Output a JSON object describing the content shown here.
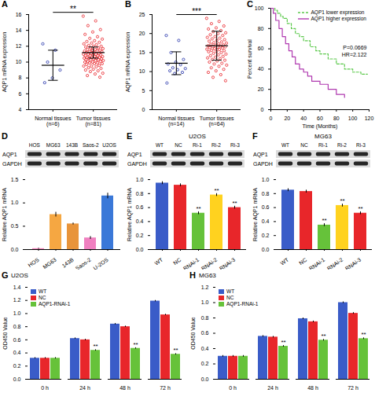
{
  "chart_data": [
    {
      "panel": "A",
      "type": "scatter",
      "categories": [
        "Normal tissues\n(n=6)",
        "Tumor tissues\n(n=81)"
      ],
      "points": [
        [
          12.3,
          11.5,
          10.0,
          9.0,
          8.0,
          7.4
        ],
        [
          15.8,
          15.2,
          14.6,
          14.1,
          13.8,
          13.5,
          13.2,
          13.0,
          12.9,
          12.7,
          12.6,
          12.5,
          12.4,
          12.3,
          12.2,
          12.1,
          12.0,
          12.0,
          11.9,
          11.8,
          11.8,
          11.7,
          11.6,
          11.6,
          11.5,
          11.5,
          11.4,
          11.4,
          11.3,
          11.3,
          11.2,
          11.2,
          11.1,
          11.1,
          11.0,
          11.0,
          11.0,
          10.9,
          10.9,
          10.8,
          10.8,
          10.8,
          10.7,
          10.7,
          10.6,
          10.6,
          10.6,
          10.5,
          10.5,
          10.5,
          10.4,
          10.4,
          10.3,
          10.3,
          10.3,
          10.2,
          10.2,
          10.1,
          10.1,
          10.0,
          10.0,
          9.9,
          9.9,
          9.8,
          9.8,
          9.7,
          9.6,
          9.5,
          9.5,
          9.4,
          9.3,
          9.2,
          9.1,
          9.0,
          8.9,
          8.8,
          8.6,
          8.5,
          8.3,
          8.1,
          11.5
        ]
      ],
      "means": [
        9.6,
        11.2
      ],
      "errors": [
        1.9,
        0.7
      ],
      "colors": [
        "#1f2fa8",
        "#e8232a"
      ],
      "ylabel": "AQP1 mRNA expression",
      "ylim": [
        4,
        16
      ],
      "yticks": [
        4,
        6,
        8,
        10,
        12,
        14,
        16
      ],
      "annotations": [
        "**"
      ]
    },
    {
      "panel": "B",
      "type": "scatter",
      "categories": [
        "Normal tissues\n(n=14)",
        "Tumor tissues\n(n=64)"
      ],
      "points": [
        [
          19.5,
          18.2,
          15.0,
          13.2,
          12.5,
          12.0,
          11.8,
          11.0,
          10.8,
          10.5,
          10.2,
          9.8,
          9.5,
          7.0
        ],
        [
          24.0,
          23.2,
          22.6,
          22.0,
          21.5,
          21.2,
          20.8,
          20.5,
          20.2,
          20.0,
          19.7,
          19.5,
          19.2,
          19.0,
          18.8,
          18.6,
          18.4,
          18.2,
          18.0,
          17.8,
          17.6,
          17.5,
          17.3,
          17.2,
          17.0,
          16.9,
          16.8,
          16.7,
          16.6,
          16.5,
          16.4,
          16.3,
          16.2,
          16.0,
          15.9,
          15.8,
          15.6,
          15.5,
          15.3,
          15.2,
          15.0,
          14.8,
          14.6,
          14.4,
          14.2,
          14.0,
          13.8,
          13.6,
          13.4,
          13.2,
          13.0,
          12.8,
          12.5,
          12.2,
          12.0,
          11.7,
          11.4,
          11.0,
          10.6,
          10.2,
          9.8,
          9.2,
          8.5,
          7.6
        ]
      ],
      "means": [
        12.2,
        16.8
      ],
      "errors": [
        3.0,
        3.8
      ],
      "colors": [
        "#1f2fa8",
        "#e8232a"
      ],
      "ylabel": "AQP1 mRNA expression",
      "ylim": [
        0,
        25
      ],
      "yticks": [
        0,
        5,
        10,
        15,
        20,
        25
      ],
      "annotations": [
        "***"
      ]
    },
    {
      "panel": "C",
      "type": "line",
      "xlabel": "Time (Months)",
      "ylabel": "Percent survival",
      "xlim": [
        0,
        120
      ],
      "xticks": [
        0,
        20,
        40,
        60,
        80,
        100,
        120
      ],
      "ylim": [
        0,
        100
      ],
      "yticks": [
        0,
        20,
        40,
        60,
        80,
        100
      ],
      "series": [
        {
          "name": "AQP1 lower expression",
          "color": "#5cc94c",
          "line_style": "dashed",
          "x": [
            0,
            5,
            8,
            12,
            15,
            20,
            25,
            30,
            35,
            40,
            48,
            55,
            60,
            70,
            80,
            90,
            100,
            110,
            118
          ],
          "values": [
            100,
            98,
            95,
            92,
            90,
            85,
            80,
            75,
            72,
            68,
            62,
            58,
            55,
            50,
            45,
            40,
            37,
            35,
            35
          ]
        },
        {
          "name": "AQP1 higher expression",
          "color": "#b03ab0",
          "line_style": "solid",
          "x": [
            0,
            3,
            6,
            10,
            14,
            18,
            22,
            26,
            30,
            35,
            40,
            45,
            50,
            60,
            70,
            80,
            90
          ],
          "values": [
            100,
            95,
            88,
            80,
            72,
            65,
            58,
            52,
            45,
            40,
            37,
            33,
            28,
            25,
            20,
            15,
            12
          ]
        }
      ],
      "annotations": [
        "P=0.0669",
        "HR=2.122"
      ],
      "legend": "top-right"
    },
    {
      "panel": "D",
      "type": "bar",
      "blot": {
        "lanes": [
          "HOS",
          "MG63",
          "143B",
          "Saos-2",
          "U2OS"
        ],
        "rows": [
          "AQP1",
          "GAPDH"
        ]
      },
      "categories": [
        "HOS",
        "MG63",
        "143B",
        "Saos-2",
        "U-2OS"
      ],
      "values": [
        0.02,
        0.75,
        0.55,
        0.25,
        1.15
      ],
      "errors": [
        0.01,
        0.05,
        0.02,
        0.03,
        0.06
      ],
      "colors": [
        "#f080b8",
        "#f5a742",
        "#e8943a",
        "#f080c0",
        "#3a78d8"
      ],
      "ylabel": "Relative AQP1 mRNA",
      "ylim": [
        0,
        1.5
      ],
      "yticks": [
        {
          "value": 0,
          "label": "0.0"
        },
        0.5,
        {
          "value": 1,
          "label": "1.0"
        },
        1.5
      ]
    },
    {
      "panel": "E",
      "type": "bar",
      "title": "U2OS",
      "blot": {
        "lanes": [
          "WT",
          "NC",
          "Ri-1",
          "Ri-2",
          "Ri-3"
        ],
        "rows": [
          "AQP1",
          "GAPDH"
        ]
      },
      "categories": [
        "WT",
        "NC",
        "RNAi-1",
        "RNAi-2",
        "RNAi-3"
      ],
      "values": [
        0.95,
        0.92,
        0.52,
        0.78,
        0.6
      ],
      "errors": [
        0.02,
        0.02,
        0.02,
        0.02,
        0.02
      ],
      "colors": [
        "#3a5cc8",
        "#e8262a",
        "#66c23a",
        "#ffd21f",
        "#e8262a"
      ],
      "annotations": [
        null,
        null,
        "**",
        "**",
        "**"
      ],
      "ylabel": "Relative AQP1 mRNA",
      "ylim": [
        0,
        1
      ],
      "yticks": [
        {
          "value": 0,
          "label": "0.0"
        },
        0.2,
        0.4,
        0.6,
        0.8,
        {
          "value": 1,
          "label": "1.0"
        }
      ]
    },
    {
      "panel": "F",
      "type": "bar",
      "title": "MG63",
      "blot": {
        "lanes": [
          "WT",
          "NC",
          "Ri-1",
          "Ri-2",
          "Ri-3"
        ],
        "rows": [
          "AQP1",
          "GAPDH"
        ]
      },
      "categories": [
        "WT",
        "NC",
        "RNAi-1",
        "RNAi-2",
        "RNAi-3"
      ],
      "values": [
        0.85,
        0.83,
        0.35,
        0.63,
        0.52
      ],
      "errors": [
        0.02,
        0.02,
        0.02,
        0.02,
        0.02
      ],
      "colors": [
        "#3a5cc8",
        "#e8262a",
        "#66c23a",
        "#ffd21f",
        "#e8262a"
      ],
      "annotations": [
        null,
        null,
        "**",
        "**",
        "**"
      ],
      "ylabel": "Relative AQP1 mRNA",
      "ylim": [
        0,
        1
      ],
      "yticks": [
        {
          "value": 0,
          "label": "0.0"
        },
        0.2,
        0.4,
        0.6,
        0.8,
        {
          "value": 1,
          "label": "1.0"
        }
      ]
    },
    {
      "panel": "G",
      "type": "bar",
      "title": "U2OS",
      "categories": [
        "0 h",
        "24 h",
        "48 h",
        "72 h"
      ],
      "series": [
        {
          "name": "WT",
          "color": "#3a5cc8",
          "values": [
            0.32,
            0.62,
            0.84,
            1.19
          ],
          "errors": [
            0.01,
            0.01,
            0.01,
            0.01
          ]
        },
        {
          "name": "NC",
          "color": "#e8262a",
          "values": [
            0.32,
            0.6,
            0.8,
            0.98
          ],
          "errors": [
            0.01,
            0.01,
            0.01,
            0.01
          ]
        },
        {
          "name": "AQP1-RNAi-1",
          "color": "#66c23a",
          "values": [
            0.32,
            0.44,
            0.47,
            0.38
          ],
          "errors": [
            0.01,
            0.01,
            0.01,
            0.01
          ],
          "annotations": [
            null,
            "**",
            "**",
            "**"
          ]
        }
      ],
      "ylabel": "OD450 Value",
      "ylim": [
        0,
        1.4
      ],
      "yticks": [
        {
          "value": 0,
          "label": "0.0"
        },
        0.2,
        0.4,
        0.6,
        0.8,
        {
          "value": 1,
          "label": "1.0"
        },
        1.2,
        1.4
      ],
      "legend": "top-left"
    },
    {
      "panel": "H",
      "type": "bar",
      "title": "MG63",
      "categories": [
        "0 h",
        "24 h",
        "48 h",
        "72 h"
      ],
      "series": [
        {
          "name": "WT",
          "color": "#3a5cc8",
          "values": [
            0.3,
            0.56,
            0.79,
            1.0
          ],
          "errors": [
            0.01,
            0.01,
            0.01,
            0.01
          ]
        },
        {
          "name": "NC",
          "color": "#e8262a",
          "values": [
            0.3,
            0.55,
            0.75,
            0.86
          ],
          "errors": [
            0.01,
            0.01,
            0.01,
            0.01
          ]
        },
        {
          "name": "AQP1-RNAi-1",
          "color": "#66c23a",
          "values": [
            0.3,
            0.43,
            0.51,
            0.53
          ],
          "errors": [
            0.01,
            0.01,
            0.01,
            0.01
          ],
          "annotations": [
            null,
            "**",
            "**",
            "**"
          ]
        }
      ],
      "ylabel": "OD450 Value",
      "ylim": [
        0,
        1.2
      ],
      "yticks": [
        {
          "value": 0,
          "label": "0.0"
        },
        0.2,
        0.4,
        0.6,
        0.8,
        {
          "value": 1,
          "label": "1.0"
        },
        1.2
      ],
      "legend": "top-left"
    }
  ]
}
